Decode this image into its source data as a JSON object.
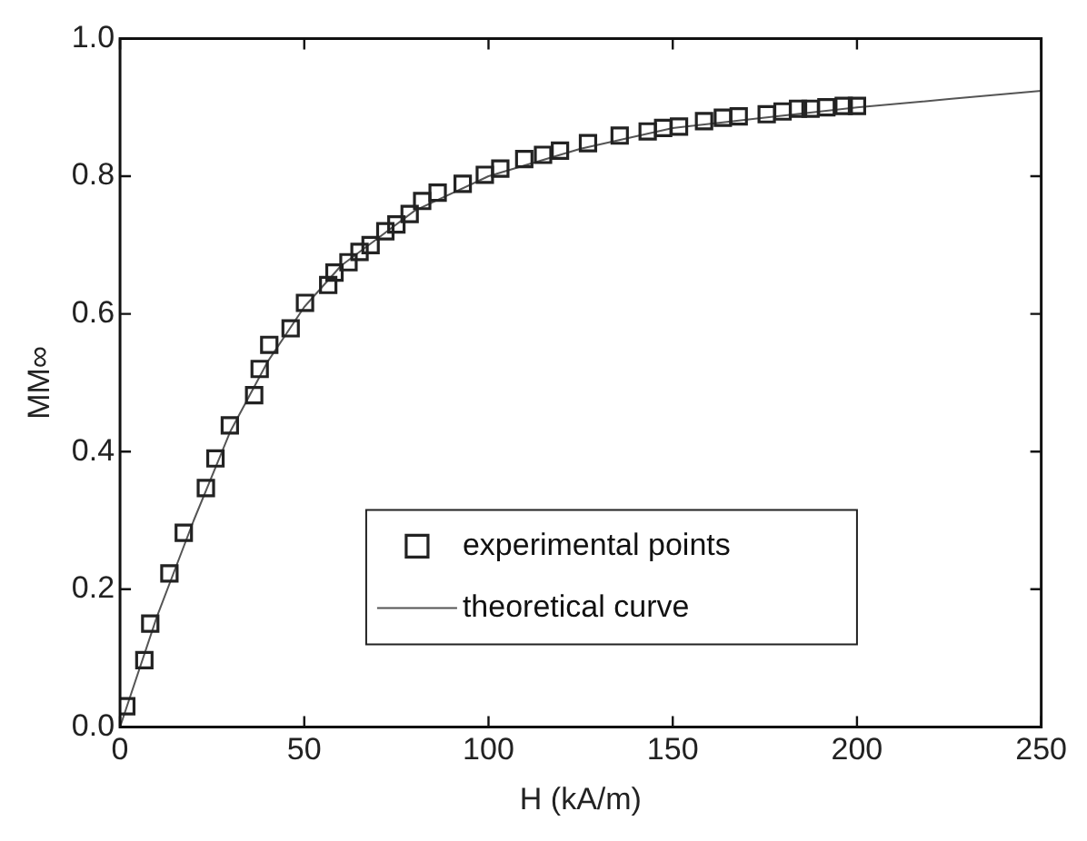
{
  "chart_data": {
    "type": "scatter",
    "xlabel": "H (kA/m)",
    "ylabel": "MM∞",
    "xlim": [
      0,
      250
    ],
    "xticks": [
      0,
      50,
      100,
      150,
      200,
      250
    ],
    "ylim": [
      0,
      1
    ],
    "yticks": [
      {
        "value": 0,
        "label": "0.0"
      },
      0.2,
      0.4,
      0.6,
      0.8,
      {
        "value": 1,
        "label": "1.0"
      }
    ],
    "grid": false,
    "legend": "bottom right",
    "series": [
      {
        "name": "experimental points",
        "type": "scatter",
        "marker": "square",
        "color": "#222222",
        "x": [
          1.7,
          6.6,
          8.2,
          13.4,
          17.3,
          23.3,
          25.9,
          29.8,
          36.4,
          37.9,
          40.5,
          46.3,
          50.2,
          56.5,
          58.2,
          62,
          65,
          68,
          72,
          75,
          78.6,
          82,
          86.2,
          93,
          99,
          103.2,
          109.7,
          114.8,
          119.4,
          127,
          135.6,
          143.2,
          147.4,
          151.7,
          158.5,
          163.6,
          167.9,
          175.5,
          179.8,
          184,
          187.4,
          191.7,
          196.4,
          200
        ],
        "values": [
          0.03,
          0.097,
          0.15,
          0.223,
          0.282,
          0.347,
          0.39,
          0.438,
          0.482,
          0.52,
          0.555,
          0.579,
          0.616,
          0.642,
          0.66,
          0.675,
          0.69,
          0.7,
          0.72,
          0.73,
          0.745,
          0.764,
          0.776,
          0.789,
          0.802,
          0.811,
          0.825,
          0.831,
          0.837,
          0.848,
          0.859,
          0.865,
          0.87,
          0.872,
          0.88,
          0.885,
          0.887,
          0.89,
          0.894,
          0.898,
          0.898,
          0.9,
          0.902,
          0.902
        ]
      },
      {
        "name": "theoretical curve",
        "type": "line",
        "marker": "none",
        "color": "#555555",
        "x": [
          0,
          10,
          20,
          30,
          40,
          50,
          60,
          70,
          80,
          100,
          125,
          150,
          175,
          200,
          225,
          250
        ],
        "values": [
          0,
          0.16,
          0.3,
          0.43,
          0.53,
          0.61,
          0.67,
          0.71,
          0.75,
          0.8,
          0.84,
          0.87,
          0.885,
          0.9,
          0.912,
          0.924
        ]
      }
    ]
  }
}
